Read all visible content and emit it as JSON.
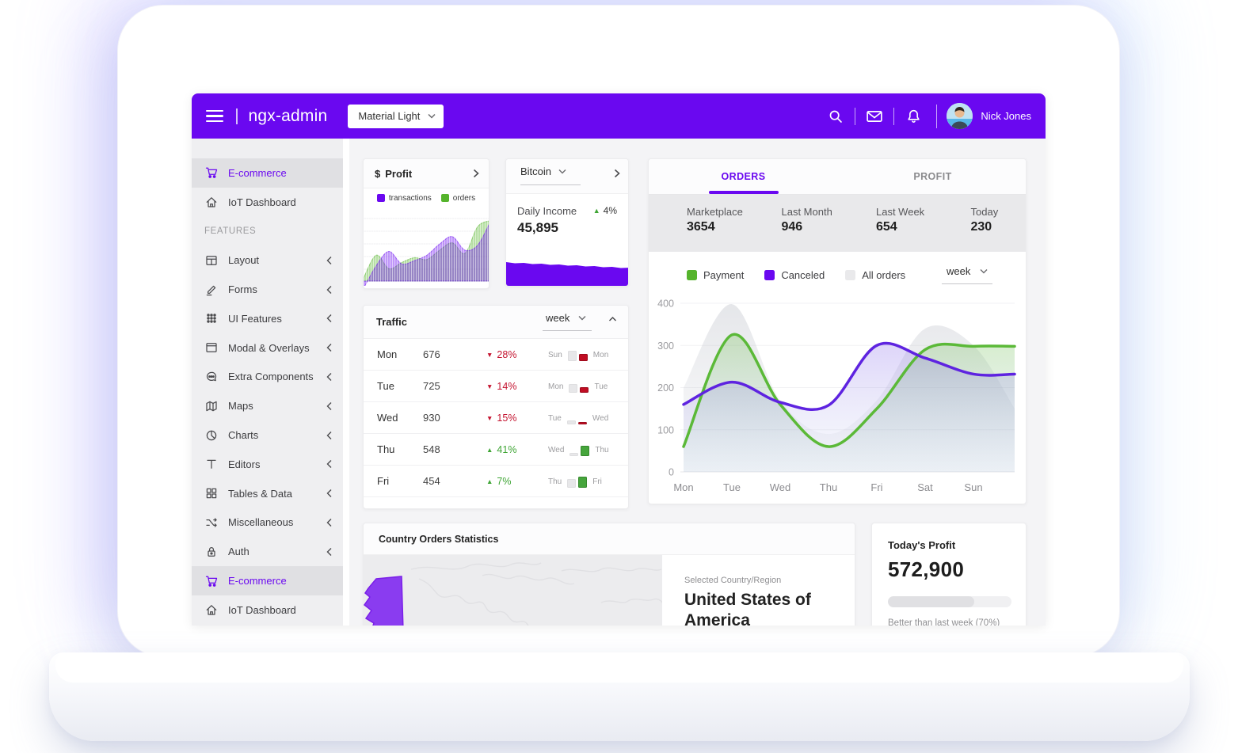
{
  "header": {
    "logo": "ngx-admin",
    "theme_select": {
      "value": "Material Light"
    },
    "icons": [
      "search-icon",
      "email-icon",
      "bell-icon"
    ],
    "user": {
      "name": "Nick Jones"
    }
  },
  "sidebar": {
    "items": [
      {
        "label": "E-commerce",
        "icon": "cart-icon",
        "type": "link",
        "selected": true
      },
      {
        "label": "IoT Dashboard",
        "icon": "home-icon",
        "type": "link",
        "selected": false
      },
      {
        "label": "FEATURES",
        "type": "section"
      },
      {
        "label": "Layout",
        "icon": "layout-icon",
        "type": "group",
        "collapsed": true
      },
      {
        "label": "Forms",
        "icon": "edit-icon",
        "type": "group",
        "collapsed": true
      },
      {
        "label": "UI Features",
        "icon": "keypad-icon",
        "type": "group",
        "collapsed": true
      },
      {
        "label": "Modal & Overlays",
        "icon": "browser-icon",
        "type": "group",
        "collapsed": true
      },
      {
        "label": "Extra Components",
        "icon": "chat-icon",
        "type": "group",
        "collapsed": true
      },
      {
        "label": "Maps",
        "icon": "map-icon",
        "type": "group",
        "collapsed": true
      },
      {
        "label": "Charts",
        "icon": "pie-chart-icon",
        "type": "group",
        "collapsed": true
      },
      {
        "label": "Editors",
        "icon": "text-icon",
        "type": "group",
        "collapsed": true
      },
      {
        "label": "Tables & Data",
        "icon": "grid-icon",
        "type": "group",
        "collapsed": true
      },
      {
        "label": "Miscellaneous",
        "icon": "shuffle-icon",
        "type": "group",
        "collapsed": true
      },
      {
        "label": "Auth",
        "icon": "lock-icon",
        "type": "group",
        "collapsed": true
      },
      {
        "label": "E-commerce",
        "icon": "cart-icon",
        "type": "link",
        "selected": true
      },
      {
        "label": "IoT Dashboard",
        "icon": "home-icon",
        "type": "link",
        "selected": false
      }
    ]
  },
  "profit_card": {
    "currency": "$",
    "title": "Profit",
    "legend": [
      {
        "label": "transactions",
        "color": "#6a08f0"
      },
      {
        "label": "orders",
        "color": "#55b42c"
      }
    ],
    "chart_data": {
      "type": "area",
      "series": [
        {
          "name": "orders",
          "color": "#55b42c",
          "values": [
            5,
            42,
            20,
            30,
            38,
            35,
            50,
            62,
            45,
            88,
            98
          ]
        },
        {
          "name": "transactions",
          "color": "#6a08f0",
          "values": [
            -12,
            25,
            48,
            28,
            33,
            42,
            60,
            72,
            50,
            58,
            96
          ]
        }
      ]
    }
  },
  "bitcoin_card": {
    "selector": "Bitcoin",
    "metric_label": "Daily Income",
    "metric_value": "45,895",
    "delta": {
      "value": "4%",
      "direction": "up"
    },
    "chart_data": {
      "type": "area",
      "series": [
        {
          "name": "daily income",
          "color": "#6a08f0",
          "values": [
            30,
            28.5,
            29,
            27.5,
            28,
            26.5,
            27,
            25.5,
            26,
            24.5,
            25,
            23.5,
            24,
            22.5,
            23
          ]
        }
      ]
    }
  },
  "orders_card": {
    "tabs": [
      {
        "label": "ORDERS",
        "active": true
      },
      {
        "label": "PROFIT",
        "active": false
      }
    ],
    "stats": [
      {
        "label": "Marketplace",
        "value": "3654"
      },
      {
        "label": "Last Month",
        "value": "946"
      },
      {
        "label": "Last Week",
        "value": "654"
      },
      {
        "label": "Today",
        "value": "230"
      }
    ],
    "legend": [
      {
        "label": "Payment",
        "color": "#55b42c"
      },
      {
        "label": "Canceled",
        "color": "#6a08f0"
      },
      {
        "label": "All orders",
        "color": "#e9e9eb"
      }
    ],
    "period_select": "week",
    "chart_data": {
      "type": "line",
      "categories": [
        "Mon",
        "Tue",
        "Wed",
        "Thu",
        "Fri",
        "Sat",
        "Sun"
      ],
      "ylim": [
        0,
        400
      ],
      "yticks": [
        0,
        100,
        200,
        300,
        400
      ],
      "series": [
        {
          "name": "All orders",
          "color": "#dcdee3",
          "values": [
            200,
            398,
            170,
            90,
            170,
            340,
            300
          ],
          "tail": 150
        },
        {
          "name": "Payment",
          "color": "#5bb938",
          "values": [
            60,
            325,
            160,
            60,
            150,
            290,
            298
          ],
          "tail": 298
        },
        {
          "name": "Canceled",
          "color": "#5e23e0",
          "values": [
            160,
            213,
            165,
            158,
            300,
            270,
            232
          ],
          "tail": 232
        }
      ]
    }
  },
  "traffic_card": {
    "title": "Traffic",
    "period_select": "week",
    "rows": [
      {
        "day": "Mon",
        "value": "676",
        "delta": "28%",
        "direction": "down",
        "compare": {
          "prev_day": "Sun",
          "next_day": "Mon",
          "prev_bar": 13,
          "curr_bar": 9
        }
      },
      {
        "day": "Tue",
        "value": "725",
        "delta": "14%",
        "direction": "down",
        "compare": {
          "prev_day": "Mon",
          "next_day": "Tue",
          "prev_bar": 11,
          "curr_bar": 7
        }
      },
      {
        "day": "Wed",
        "value": "930",
        "delta": "15%",
        "direction": "down",
        "compare": {
          "prev_day": "Tue",
          "next_day": "Wed",
          "prev_bar": 5,
          "curr_bar": 3
        }
      },
      {
        "day": "Thu",
        "value": "548",
        "delta": "41%",
        "direction": "up",
        "compare": {
          "prev_day": "Wed",
          "next_day": "Thu",
          "prev_bar": 4,
          "curr_bar": 13
        }
      },
      {
        "day": "Fri",
        "value": "454",
        "delta": "7%",
        "direction": "up",
        "compare": {
          "prev_day": "Thu",
          "next_day": "Fri",
          "prev_bar": 11,
          "curr_bar": 14
        }
      }
    ]
  },
  "country_card": {
    "title": "Country Orders Statistics",
    "selected_label": "Selected Country/Region",
    "selected_country": "United States of America"
  },
  "today_profit_card": {
    "title": "Today's Profit",
    "value": "572,900",
    "progress_pct": 70,
    "note": "Better than last week (70%)"
  },
  "colors": {
    "primary": "#6a08f0",
    "success": "#55b42c",
    "danger": "#c4132f",
    "up_green": "#3fa535",
    "map_highlight": "#8a3cf0"
  }
}
